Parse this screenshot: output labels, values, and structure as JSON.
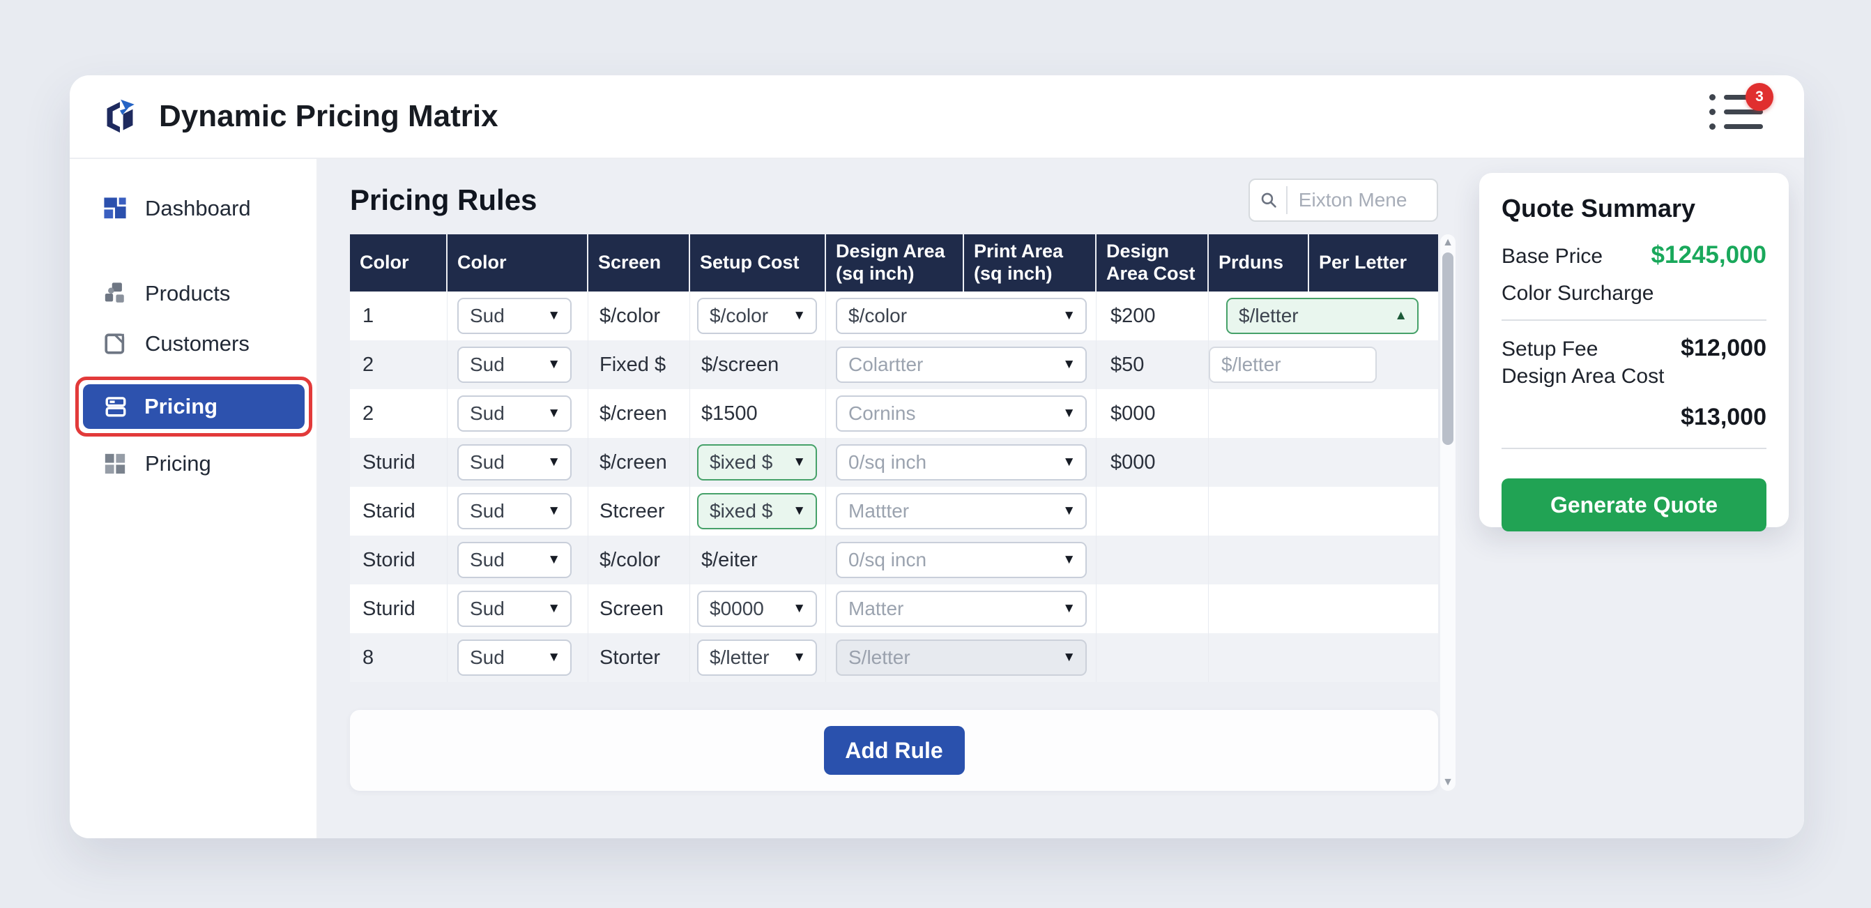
{
  "ui": {
    "select_arrow_down": "▼",
    "select_arrow_up": "▲",
    "scroll_up_glyph": "▲",
    "scroll_down_glyph": "▼"
  },
  "colors": {
    "header_navy": "#1f2b4a",
    "active_blue": "#2d52ae",
    "add_rule_blue": "#2a51ad",
    "annotation_red": "#e23a3a",
    "green_button": "#21a354",
    "green_value": "#19a85b",
    "green_select_bg": "#e9f6ee"
  },
  "header": {
    "title": "Dynamic Pricing Matrix",
    "badge_count": "3"
  },
  "sidebar": {
    "items": [
      {
        "label": "Dashboard",
        "icon": "dashboard-icon",
        "active": false
      },
      {
        "label": "Products",
        "icon": "products-icon",
        "active": false
      },
      {
        "label": "Customers",
        "icon": "customers-icon",
        "active": false
      },
      {
        "label": "Pricing",
        "icon": "pricing-icon",
        "active": true,
        "annotated": "red-outline"
      },
      {
        "label": "Pricing",
        "icon": "grid-icon",
        "active": false
      }
    ]
  },
  "main": {
    "title": "Pricing Rules",
    "search": {
      "placeholder": "Eixton Mene"
    },
    "add_rule_label": "Add Rule",
    "table": {
      "columns": [
        "Color",
        "Color",
        "Screen",
        "Setup Cost",
        "Design Area (sq inch)",
        "Print Area (sq inch)",
        "Design Area Cost",
        "Prduns",
        "Per Letter"
      ],
      "rows": [
        {
          "id": "1",
          "color": "Sud",
          "screen": "$/color",
          "setup": {
            "kind": "select",
            "value": "$/color",
            "variant": ""
          },
          "design_print": {
            "kind": "select",
            "value": "$/color",
            "variant": ""
          },
          "design_cost": "$200",
          "per_letter": {
            "kind": "select",
            "value": "$/letter",
            "variant": "green-open"
          }
        },
        {
          "id": "2",
          "color": "Sud",
          "screen": "Fixed $",
          "setup": {
            "kind": "text",
            "value": "$/screen"
          },
          "design_print": {
            "kind": "select",
            "value": "Colartter",
            "variant": "muted"
          },
          "design_cost": "$50",
          "per_letter": {
            "kind": "box",
            "value": "$/letter"
          }
        },
        {
          "id": "2",
          "color": "Sud",
          "screen": "$/creen",
          "setup": {
            "kind": "text",
            "value": "$1500"
          },
          "design_print": {
            "kind": "select",
            "value": "Cornins",
            "variant": "muted"
          },
          "design_cost": "$000",
          "per_letter": {
            "kind": "none"
          }
        },
        {
          "id": "Sturid",
          "color": "Sud",
          "screen": "$/creen",
          "setup": {
            "kind": "select",
            "value": "$ixed $",
            "variant": "green"
          },
          "design_print": {
            "kind": "select",
            "value": "0/sq inch",
            "variant": "muted"
          },
          "design_cost": "$000",
          "per_letter": {
            "kind": "none"
          }
        },
        {
          "id": "Starid",
          "color": "Sud",
          "screen": "Stcreer",
          "setup": {
            "kind": "select",
            "value": "$ixed $",
            "variant": "green"
          },
          "design_print": {
            "kind": "select",
            "value": "Mattter",
            "variant": "muted"
          },
          "design_cost": "",
          "per_letter": {
            "kind": "none"
          }
        },
        {
          "id": "Storid",
          "color": "Sud",
          "screen": "$/color",
          "setup": {
            "kind": "text",
            "value": "$/eiter"
          },
          "design_print": {
            "kind": "select",
            "value": "0/sq incn",
            "variant": "muted"
          },
          "design_cost": "",
          "per_letter": {
            "kind": "none"
          }
        },
        {
          "id": "Sturid",
          "color": "Sud",
          "screen": "Screen",
          "setup": {
            "kind": "select",
            "value": "$0000",
            "variant": ""
          },
          "design_print": {
            "kind": "select",
            "value": "Matter",
            "variant": "muted"
          },
          "design_cost": "",
          "per_letter": {
            "kind": "none"
          }
        },
        {
          "id": "8",
          "color": "Sud",
          "screen": "Storter",
          "setup": {
            "kind": "select",
            "value": "$/letter",
            "variant": ""
          },
          "design_print": {
            "kind": "select",
            "value": "S/letter",
            "variant": "disabled"
          },
          "design_cost": "",
          "per_letter": {
            "kind": "none"
          }
        }
      ]
    }
  },
  "quote": {
    "title": "Quote Summary",
    "base_price_label": "Base Price",
    "base_price_value": "$1245,000",
    "color_surcharge_label": "Color Surcharge",
    "setup_fee_label": "Setup Fee",
    "setup_fee_value": "$12,000",
    "design_area_label": "Design Area Cost",
    "design_area_value": "$13,000",
    "generate_label": "Generate Quote"
  }
}
